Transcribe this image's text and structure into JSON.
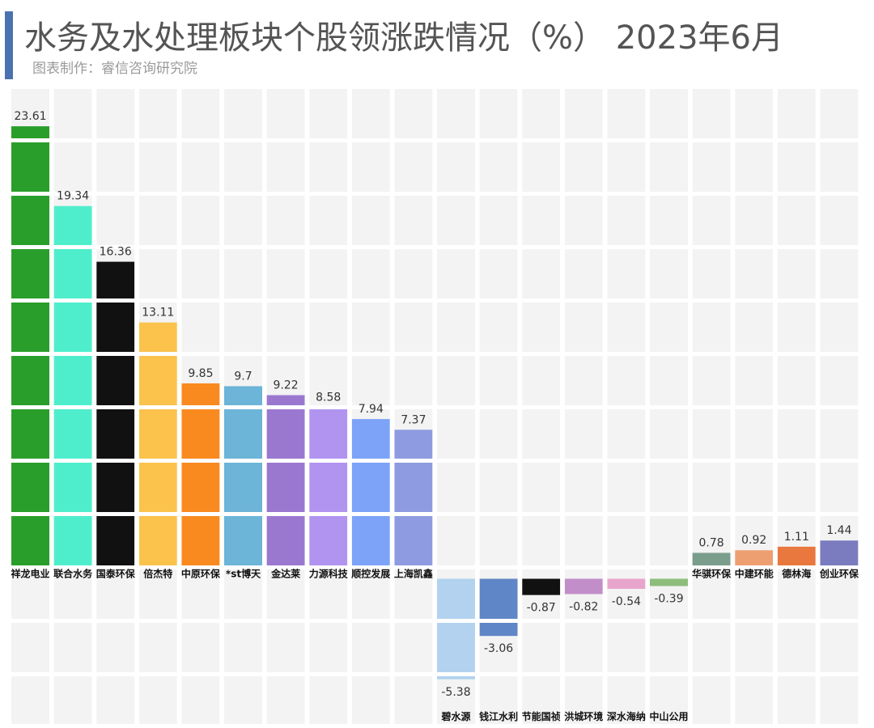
{
  "header": {
    "title": "水务及水处理板块个股领涨跌情况（%） 2023年6月",
    "subtitle": "图表制作：睿信咨询研究院"
  },
  "chart_data": {
    "type": "bar",
    "title": "水务及水处理板块个股领涨跌情况（%） 2023年6月",
    "subtitle": "图表制作：睿信咨询研究院",
    "xlabel": "",
    "ylabel": "",
    "ylim": [
      -6,
      25
    ],
    "grid": true,
    "legend": "none",
    "categories": [
      "祥龙电业",
      "联合水务",
      "国泰环保",
      "倍杰特",
      "中原环保",
      "*st博天",
      "金达莱",
      "力源科技",
      "顺控发展",
      "上海凯鑫",
      "碧水源",
      "钱江水利",
      "节能国祯",
      "洪城环境",
      "深水海纳",
      "中山公用",
      "华骐环保",
      "中建环能",
      "德林海",
      "创业环保"
    ],
    "values": [
      23.61,
      19.34,
      16.36,
      13.11,
      9.85,
      9.7,
      9.22,
      8.58,
      7.94,
      7.37,
      -5.38,
      -3.06,
      -0.87,
      -0.82,
      -0.54,
      -0.39,
      0.78,
      0.92,
      1.11,
      1.44
    ],
    "value_labels": [
      "23.61",
      "19.34",
      "16.36",
      "13.11",
      "9.85",
      "9.7",
      "9.22",
      "8.58",
      "7.94",
      "7.37",
      "-5.38",
      "-3.06",
      "-0.87",
      "-0.82",
      "-0.54",
      "-0.39",
      "0.78",
      "0.92",
      "1.11",
      "1.44"
    ],
    "colors": [
      "#2a9e2a",
      "#4eeecc",
      "#111111",
      "#fbc24c",
      "#f98a1f",
      "#6cb4d8",
      "#9a78d0",
      "#b194f0",
      "#7ca3f7",
      "#8f9be0",
      "#b2d2ef",
      "#5f86c6",
      "#111111",
      "#c28ec9",
      "#e8a5cb",
      "#8dbd7a",
      "#7a9d8c",
      "#ee9f72",
      "#e8783e",
      "#7a7cbf"
    ]
  }
}
